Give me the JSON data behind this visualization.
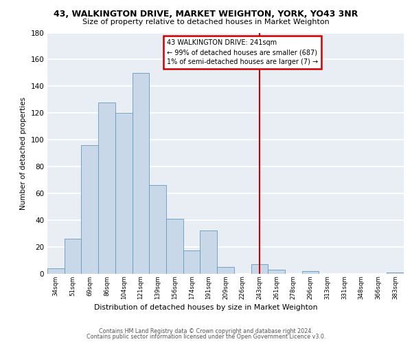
{
  "title": "43, WALKINGTON DRIVE, MARKET WEIGHTON, YORK, YO43 3NR",
  "subtitle": "Size of property relative to detached houses in Market Weighton",
  "xlabel": "Distribution of detached houses by size in Market Weighton",
  "ylabel": "Number of detached properties",
  "bar_color": "#c8d8e8",
  "bar_edge_color": "#6699bb",
  "background_color": "#e8eef4",
  "grid_color": "white",
  "bin_labels": [
    "34sqm",
    "51sqm",
    "69sqm",
    "86sqm",
    "104sqm",
    "121sqm",
    "139sqm",
    "156sqm",
    "174sqm",
    "191sqm",
    "209sqm",
    "226sqm",
    "243sqm",
    "261sqm",
    "278sqm",
    "296sqm",
    "313sqm",
    "331sqm",
    "348sqm",
    "366sqm",
    "383sqm"
  ],
  "bar_heights": [
    4,
    26,
    96,
    128,
    120,
    150,
    66,
    41,
    17,
    32,
    5,
    0,
    7,
    3,
    0,
    2,
    0,
    0,
    0,
    0,
    1
  ],
  "ylim": [
    0,
    180
  ],
  "yticks": [
    0,
    20,
    40,
    60,
    80,
    100,
    120,
    140,
    160,
    180
  ],
  "property_line_x": 12,
  "annotation_title": "43 WALKINGTON DRIVE: 241sqm",
  "annotation_line1": "← 99% of detached houses are smaller (687)",
  "annotation_line2": "1% of semi-detached houses are larger (7) →",
  "annotation_box_color": "white",
  "annotation_box_edge": "#cc0000",
  "vline_color": "#cc0000",
  "footer_line1": "Contains HM Land Registry data © Crown copyright and database right 2024.",
  "footer_line2": "Contains public sector information licensed under the Open Government Licence v3.0."
}
